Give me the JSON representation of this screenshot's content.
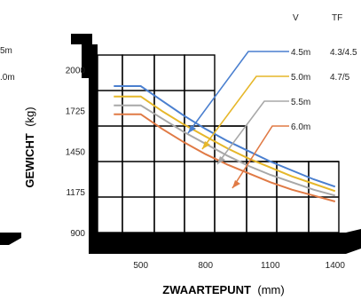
{
  "chart_data": {
    "type": "line",
    "xlabel": "ZWAARTEPUNT",
    "xunit": "(mm)",
    "ylabel": "GEWICHT",
    "yunit": "(kg)",
    "x_ticks": [
      500,
      800,
      1100,
      1400
    ],
    "y_ticks": [
      900,
      1175,
      1450,
      1725,
      2000
    ],
    "xlim": [
      300,
      1450
    ],
    "ylim": [
      900,
      2100
    ],
    "grid": true,
    "legend_headers": {
      "v": "V",
      "tf": "TF"
    },
    "left_fragments": [
      "5m",
      ".0m"
    ],
    "series": [
      {
        "name": "4.5m",
        "tf": "4.3/4.5",
        "color": "#4a7fcf",
        "x": [
          375,
          500,
          600,
          700,
          800,
          900,
          1000,
          1100,
          1200,
          1300,
          1400
        ],
        "y": [
          1890,
          1890,
          1790,
          1690,
          1600,
          1520,
          1450,
          1380,
          1320,
          1260,
          1210
        ]
      },
      {
        "name": "5.0m",
        "tf": "4.7/5",
        "color": "#e6b72a",
        "x": [
          375,
          500,
          600,
          700,
          800,
          900,
          1000,
          1100,
          1200,
          1300,
          1400
        ],
        "y": [
          1820,
          1820,
          1720,
          1630,
          1550,
          1470,
          1400,
          1340,
          1280,
          1230,
          1180
        ]
      },
      {
        "name": "5.5m",
        "tf": "",
        "color": "#a8a8a8",
        "x": [
          375,
          500,
          600,
          700,
          800,
          900,
          1000,
          1100,
          1200,
          1300,
          1400
        ],
        "y": [
          1760,
          1760,
          1670,
          1580,
          1500,
          1420,
          1350,
          1290,
          1240,
          1190,
          1150
        ]
      },
      {
        "name": "6.0m",
        "tf": "",
        "color": "#e07a45",
        "x": [
          375,
          500,
          600,
          700,
          800,
          900,
          1000,
          1100,
          1200,
          1300,
          1400
        ],
        "y": [
          1700,
          1700,
          1600,
          1510,
          1430,
          1360,
          1300,
          1240,
          1190,
          1150,
          1110
        ]
      }
    ]
  }
}
